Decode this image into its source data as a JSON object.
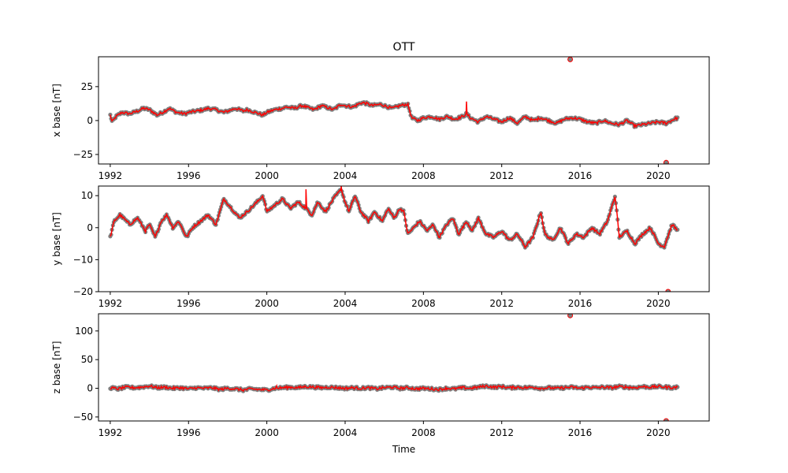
{
  "figure": {
    "title": "OTT",
    "xlabel": "Time"
  },
  "colors": {
    "scatter": "#808080",
    "line": "#ff0000"
  },
  "chart_data": [
    {
      "type": "scatter",
      "ylabel": "x base [nT]",
      "xlim": [
        1991.4,
        2022.6
      ],
      "ylim": [
        -32,
        47
      ],
      "xticks": [
        1992,
        1996,
        2000,
        2004,
        2008,
        2012,
        2016,
        2020
      ],
      "yticks": [
        -25,
        0,
        25
      ],
      "anchors": [
        [
          1992.0,
          4
        ],
        [
          1992.1,
          -1
        ],
        [
          1992.3,
          3
        ],
        [
          1992.6,
          6
        ],
        [
          1993.0,
          5
        ],
        [
          1993.4,
          7
        ],
        [
          1993.7,
          9
        ],
        [
          1994.0,
          8
        ],
        [
          1994.4,
          4
        ],
        [
          1994.8,
          7
        ],
        [
          1995.0,
          9
        ],
        [
          1995.4,
          6
        ],
        [
          1995.8,
          5
        ],
        [
          1996.0,
          6
        ],
        [
          1996.4,
          7
        ],
        [
          1996.8,
          8
        ],
        [
          1997.0,
          9
        ],
        [
          1997.4,
          8
        ],
        [
          1997.8,
          6
        ],
        [
          1998.0,
          7
        ],
        [
          1998.4,
          9
        ],
        [
          1998.8,
          7
        ],
        [
          1999.0,
          8
        ],
        [
          1999.4,
          6
        ],
        [
          1999.8,
          4
        ],
        [
          2000.0,
          6
        ],
        [
          2000.4,
          8
        ],
        [
          2000.8,
          9
        ],
        [
          2001.0,
          10
        ],
        [
          2001.4,
          9
        ],
        [
          2001.8,
          11
        ],
        [
          2002.0,
          10
        ],
        [
          2002.4,
          8
        ],
        [
          2002.8,
          11
        ],
        [
          2003.0,
          10
        ],
        [
          2003.4,
          8
        ],
        [
          2003.8,
          12
        ],
        [
          2004.0,
          11
        ],
        [
          2004.4,
          10
        ],
        [
          2004.8,
          13
        ],
        [
          2005.0,
          13
        ],
        [
          2005.4,
          11
        ],
        [
          2005.8,
          12
        ],
        [
          2006.0,
          11
        ],
        [
          2006.4,
          9
        ],
        [
          2006.8,
          11
        ],
        [
          2007.2,
          12
        ],
        [
          2007.4,
          2
        ],
        [
          2007.7,
          0
        ],
        [
          2008.0,
          2
        ],
        [
          2008.4,
          3
        ],
        [
          2008.8,
          1
        ],
        [
          2009.2,
          3
        ],
        [
          2009.6,
          1
        ],
        [
          2010.0,
          3
        ],
        [
          2010.2,
          5
        ],
        [
          2010.4,
          2
        ],
        [
          2010.8,
          -1
        ],
        [
          2011.2,
          3
        ],
        [
          2011.6,
          1
        ],
        [
          2012.0,
          -1
        ],
        [
          2012.4,
          2
        ],
        [
          2012.8,
          -2
        ],
        [
          2013.2,
          3
        ],
        [
          2013.6,
          0
        ],
        [
          2014.0,
          2
        ],
        [
          2014.4,
          0
        ],
        [
          2014.8,
          -2
        ],
        [
          2015.2,
          1
        ],
        [
          2015.6,
          2
        ],
        [
          2016.0,
          1
        ],
        [
          2016.4,
          -1
        ],
        [
          2016.8,
          -2
        ],
        [
          2017.2,
          0
        ],
        [
          2017.6,
          -2
        ],
        [
          2018.0,
          -3
        ],
        [
          2018.4,
          0
        ],
        [
          2018.8,
          -4
        ],
        [
          2019.2,
          -3
        ],
        [
          2019.6,
          -2
        ],
        [
          2020.0,
          -1
        ],
        [
          2020.4,
          -2
        ],
        [
          2020.8,
          1
        ],
        [
          2021.0,
          2
        ]
      ],
      "spikes": [
        [
          2010.2,
          14
        ],
        [
          2020.3,
          -1
        ]
      ],
      "outliers": [
        [
          2015.5,
          45
        ],
        [
          2020.4,
          -31
        ]
      ]
    },
    {
      "type": "scatter",
      "ylabel": "y base [nT]",
      "xlim": [
        1991.4,
        2022.6
      ],
      "ylim": [
        -20,
        13
      ],
      "xticks": [
        1992,
        1996,
        2000,
        2004,
        2008,
        2012,
        2016,
        2020
      ],
      "yticks": [
        -20,
        -10,
        0,
        10
      ],
      "anchors": [
        [
          1992.0,
          -3
        ],
        [
          1992.2,
          2
        ],
        [
          1992.5,
          4
        ],
        [
          1993.0,
          1
        ],
        [
          1993.4,
          3
        ],
        [
          1993.8,
          -1
        ],
        [
          1994.0,
          1
        ],
        [
          1994.3,
          -3
        ],
        [
          1994.6,
          2
        ],
        [
          1994.9,
          4
        ],
        [
          1995.2,
          0
        ],
        [
          1995.5,
          2
        ],
        [
          1995.9,
          -3
        ],
        [
          1996.2,
          0
        ],
        [
          1996.6,
          2
        ],
        [
          1997.0,
          4
        ],
        [
          1997.4,
          1
        ],
        [
          1997.8,
          9
        ],
        [
          1998.2,
          6
        ],
        [
          1998.6,
          3
        ],
        [
          1999.0,
          5
        ],
        [
          1999.5,
          8
        ],
        [
          1999.8,
          10
        ],
        [
          2000.0,
          5
        ],
        [
          2000.4,
          7
        ],
        [
          2000.8,
          9
        ],
        [
          2001.2,
          6
        ],
        [
          2001.6,
          8
        ],
        [
          2002.0,
          6
        ],
        [
          2002.3,
          4
        ],
        [
          2002.6,
          8
        ],
        [
          2003.0,
          5
        ],
        [
          2003.4,
          9
        ],
        [
          2003.8,
          12
        ],
        [
          2004.0,
          8
        ],
        [
          2004.2,
          5
        ],
        [
          2004.5,
          10
        ],
        [
          2004.8,
          5
        ],
        [
          2005.2,
          2
        ],
        [
          2005.5,
          5
        ],
        [
          2005.9,
          2
        ],
        [
          2006.2,
          6
        ],
        [
          2006.5,
          3
        ],
        [
          2006.8,
          6
        ],
        [
          2007.0,
          5
        ],
        [
          2007.2,
          -2
        ],
        [
          2007.5,
          0
        ],
        [
          2007.8,
          2
        ],
        [
          2008.2,
          -1
        ],
        [
          2008.5,
          1
        ],
        [
          2008.8,
          -3
        ],
        [
          2009.2,
          1
        ],
        [
          2009.5,
          3
        ],
        [
          2009.8,
          -2
        ],
        [
          2010.2,
          2
        ],
        [
          2010.5,
          -1
        ],
        [
          2010.8,
          3
        ],
        [
          2011.2,
          -2
        ],
        [
          2011.6,
          -3
        ],
        [
          2012.0,
          -1
        ],
        [
          2012.4,
          -4
        ],
        [
          2012.8,
          -2
        ],
        [
          2013.2,
          -6
        ],
        [
          2013.6,
          -3
        ],
        [
          2014.0,
          5
        ],
        [
          2014.2,
          -2
        ],
        [
          2014.6,
          -4
        ],
        [
          2015.0,
          0
        ],
        [
          2015.4,
          -5
        ],
        [
          2015.8,
          -2
        ],
        [
          2016.2,
          -3
        ],
        [
          2016.6,
          0
        ],
        [
          2017.0,
          -2
        ],
        [
          2017.4,
          2
        ],
        [
          2017.8,
          10
        ],
        [
          2018.0,
          -3
        ],
        [
          2018.4,
          -1
        ],
        [
          2018.8,
          -5
        ],
        [
          2019.2,
          -2
        ],
        [
          2019.6,
          0
        ],
        [
          2020.0,
          -5
        ],
        [
          2020.3,
          -6
        ],
        [
          2020.7,
          1
        ],
        [
          2021.0,
          -1
        ]
      ],
      "spikes": [
        [
          2002.0,
          12
        ],
        [
          2003.8,
          13
        ]
      ],
      "outliers": [
        [
          2020.5,
          -20
        ]
      ]
    },
    {
      "type": "scatter",
      "ylabel": "z base [nT]",
      "xlim": [
        1991.4,
        2022.6
      ],
      "ylim": [
        -57,
        130
      ],
      "xticks": [
        1992,
        1996,
        2000,
        2004,
        2008,
        2012,
        2016,
        2020
      ],
      "yticks": [
        -50,
        0,
        50,
        100
      ],
      "anchors": [
        [
          1992.0,
          1
        ],
        [
          1992.4,
          -1
        ],
        [
          1992.8,
          2
        ],
        [
          1993.2,
          1
        ],
        [
          1993.6,
          2
        ],
        [
          1994.0,
          4
        ],
        [
          1994.4,
          1
        ],
        [
          1994.8,
          2
        ],
        [
          1995.2,
          0
        ],
        [
          1995.6,
          1
        ],
        [
          1996.0,
          -1
        ],
        [
          1996.4,
          1
        ],
        [
          1996.8,
          0
        ],
        [
          1997.2,
          1
        ],
        [
          1997.6,
          -2
        ],
        [
          1998.0,
          0
        ],
        [
          1998.4,
          -1
        ],
        [
          1998.8,
          -3
        ],
        [
          1999.2,
          -1
        ],
        [
          1999.6,
          -2
        ],
        [
          2000.0,
          -3
        ],
        [
          2000.4,
          0
        ],
        [
          2000.8,
          1
        ],
        [
          2001.2,
          2
        ],
        [
          2001.6,
          1
        ],
        [
          2002.0,
          3
        ],
        [
          2002.4,
          2
        ],
        [
          2002.8,
          1
        ],
        [
          2003.2,
          2
        ],
        [
          2003.6,
          1
        ],
        [
          2004.0,
          0
        ],
        [
          2004.4,
          1
        ],
        [
          2004.8,
          0
        ],
        [
          2005.2,
          1
        ],
        [
          2005.6,
          -1
        ],
        [
          2006.0,
          1
        ],
        [
          2006.4,
          2
        ],
        [
          2006.8,
          0
        ],
        [
          2007.2,
          1
        ],
        [
          2007.6,
          -1
        ],
        [
          2008.0,
          0
        ],
        [
          2008.4,
          -1
        ],
        [
          2008.8,
          -2
        ],
        [
          2009.2,
          0
        ],
        [
          2009.6,
          -1
        ],
        [
          2010.0,
          1
        ],
        [
          2010.4,
          0
        ],
        [
          2010.8,
          2
        ],
        [
          2011.2,
          4
        ],
        [
          2011.6,
          2
        ],
        [
          2012.0,
          3
        ],
        [
          2012.4,
          1
        ],
        [
          2012.8,
          2
        ],
        [
          2013.2,
          1
        ],
        [
          2013.6,
          2
        ],
        [
          2014.0,
          0
        ],
        [
          2014.4,
          1
        ],
        [
          2014.8,
          0
        ],
        [
          2015.2,
          1
        ],
        [
          2015.6,
          2
        ],
        [
          2016.0,
          0
        ],
        [
          2016.4,
          2
        ],
        [
          2016.8,
          1
        ],
        [
          2017.2,
          2
        ],
        [
          2017.6,
          1
        ],
        [
          2018.0,
          3
        ],
        [
          2018.4,
          2
        ],
        [
          2018.8,
          1
        ],
        [
          2019.2,
          3
        ],
        [
          2019.6,
          2
        ],
        [
          2020.0,
          3
        ],
        [
          2020.4,
          2
        ],
        [
          2020.8,
          1
        ],
        [
          2021.0,
          3
        ]
      ],
      "spikes": [
        [
          2000.5,
          4
        ]
      ],
      "outliers": [
        [
          2015.5,
          127
        ],
        [
          2020.4,
          -57
        ]
      ]
    }
  ]
}
